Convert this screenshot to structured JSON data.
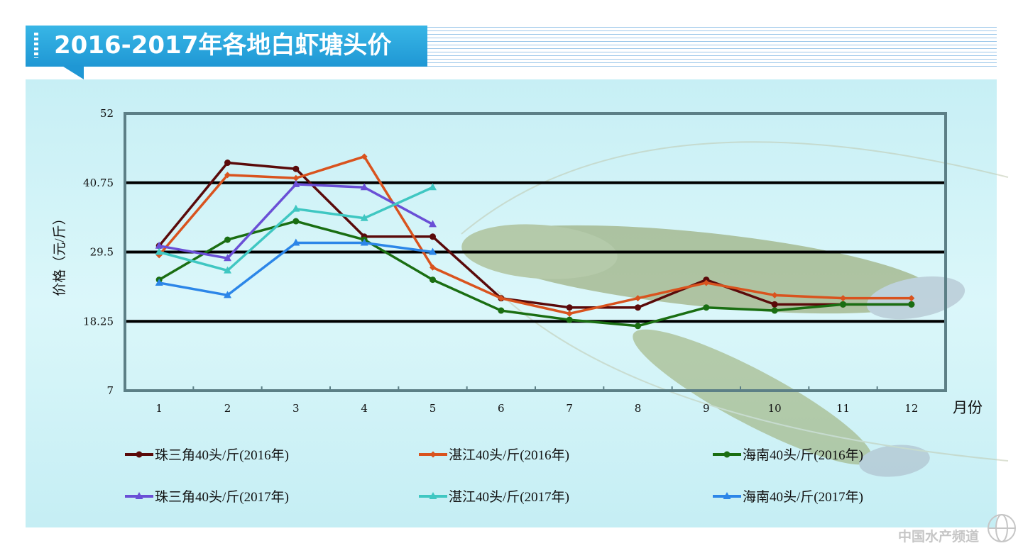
{
  "header": {
    "title": "2016-2017年各地白虾塘头价"
  },
  "watermark": {
    "text": "中国水产频道"
  },
  "colors": {
    "banner": "#2aa8e0",
    "panel_bg": "#d2f3f7",
    "plot_border": "#5c7f86"
  },
  "chart_data": {
    "type": "line",
    "title": "2016-2017年各地白虾塘头价",
    "xlabel": "月份",
    "ylabel": "价格（元/斤）",
    "ylim": [
      7,
      52
    ],
    "yticks": [
      7,
      18.25,
      29.5,
      40.75,
      52
    ],
    "ytick_labels": [
      "7",
      "18.25",
      "29.5",
      "40.75",
      "52"
    ],
    "categories": [
      "1",
      "2",
      "3",
      "4",
      "5",
      "6",
      "7",
      "8",
      "9",
      "10",
      "11",
      "12"
    ],
    "grid": "horizontal",
    "legend_position": "bottom",
    "series": [
      {
        "name": "珠三角40头/斤(2016年)",
        "color": "#5a0a0a",
        "marker": "circle",
        "values": [
          30.5,
          44,
          43,
          32,
          32,
          22,
          20.5,
          20.5,
          25,
          21,
          21,
          21
        ]
      },
      {
        "name": "湛江40头/斤(2016年)",
        "color": "#d9531e",
        "marker": "diamond",
        "values": [
          29,
          42,
          41.5,
          45,
          27,
          22,
          19.5,
          22,
          24.5,
          22.5,
          22,
          22
        ]
      },
      {
        "name": "海南40头/斤(2016年)",
        "color": "#1a6e12",
        "marker": "circle",
        "values": [
          25,
          31.5,
          34.5,
          31.5,
          25,
          20,
          18.5,
          17.5,
          20.5,
          20,
          21,
          21
        ]
      },
      {
        "name": "珠三角40头/斤(2017年)",
        "color": "#6a4fd6",
        "marker": "triangle",
        "values": [
          30.5,
          28.5,
          40.5,
          40,
          34,
          null,
          null,
          null,
          null,
          null,
          null,
          null
        ]
      },
      {
        "name": "湛江40头/斤(2017年)",
        "color": "#3fc7c2",
        "marker": "triangle",
        "values": [
          29.5,
          26.5,
          36.5,
          35,
          40,
          null,
          null,
          null,
          null,
          null,
          null,
          null
        ]
      },
      {
        "name": "海南40头/斤(2017年)",
        "color": "#2c86e8",
        "marker": "triangle",
        "values": [
          24.5,
          22.5,
          31,
          31,
          29.5,
          null,
          null,
          null,
          null,
          null,
          null,
          null
        ]
      }
    ]
  }
}
